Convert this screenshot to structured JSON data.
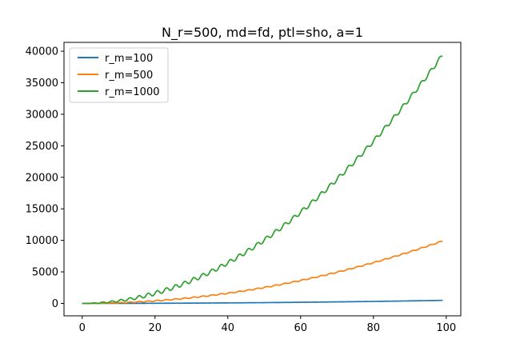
{
  "chart_data": {
    "type": "line",
    "title": "N_r=500, md=fd, ptl=sho, a=1",
    "xlabel": "",
    "ylabel": "",
    "xlim": [
      -5,
      104
    ],
    "ylim": [
      -1970,
      41400
    ],
    "xticks": [
      0,
      20,
      40,
      60,
      80,
      100
    ],
    "yticks": [
      0,
      5000,
      10000,
      15000,
      20000,
      25000,
      30000,
      35000,
      40000
    ],
    "grid": false,
    "legend_position": "upper-left",
    "x_range": [
      0,
      99
    ],
    "series": [
      {
        "name": "r_m=100",
        "color": "#1f77b4",
        "values_at": {
          "0": 0,
          "20": 16,
          "40": 64,
          "60": 145,
          "80": 258,
          "99": 480
        },
        "amplitude": 4,
        "peak": 480
      },
      {
        "name": "r_m=500",
        "color": "#ff7f0e",
        "values_at": {
          "0": 0,
          "20": 410,
          "40": 1630,
          "60": 3660,
          "80": 6510,
          "99": 9900
        },
        "amplitude": 80,
        "peak": 9900
      },
      {
        "name": "r_m=1000",
        "color": "#2ca02c",
        "values_at": {
          "0": 0,
          "20": 1620,
          "40": 6420,
          "60": 14500,
          "80": 25600,
          "99": 39400
        },
        "amplitude": 320,
        "peak": 39400
      }
    ]
  }
}
